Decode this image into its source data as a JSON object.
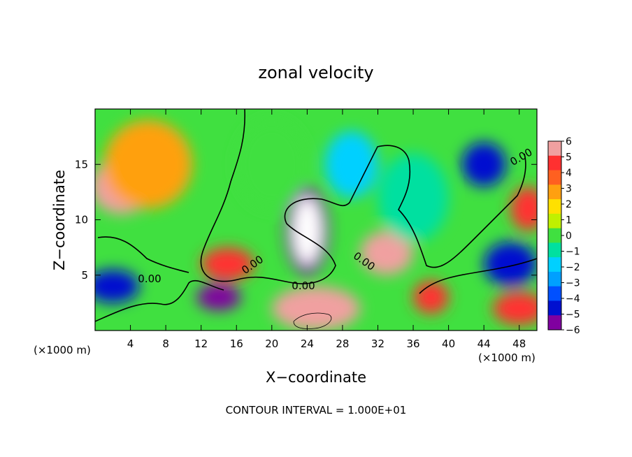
{
  "chart_data": {
    "type": "heatmap",
    "title": "zonal velocity",
    "xlabel": "X−coordinate",
    "ylabel": "Z−coordinate",
    "x_unit_label": "(×1000 m)",
    "y_unit_label": "(×1000 m)",
    "footer": "CONTOUR INTERVAL = 1.000E+01",
    "xlim": [
      0,
      50
    ],
    "ylim": [
      0,
      20
    ],
    "x_ticks": [
      4,
      8,
      12,
      16,
      20,
      24,
      28,
      32,
      36,
      40,
      44,
      48
    ],
    "y_ticks": [
      5,
      10,
      15
    ],
    "contour_labels": [
      "0.00",
      "0.00",
      "0.00",
      "0.00",
      "0.00"
    ],
    "colorbar": {
      "ticks": [
        "6",
        "5",
        "4",
        "3",
        "2",
        "1",
        "0",
        "−1",
        "−2",
        "−3",
        "−4",
        "−5",
        "−6"
      ],
      "colors": [
        "#f0a0a0",
        "#ff3030",
        "#ff6020",
        "#ffa010",
        "#ffe000",
        "#c0f000",
        "#40e040",
        "#00e0a0",
        "#00d0ff",
        "#00a0ff",
        "#0050ff",
        "#0010d0",
        "#8000a0"
      ]
    },
    "blobs": [
      {
        "x": 3,
        "z": 13,
        "rx": 3.5,
        "rz": 2.5,
        "value": 6
      },
      {
        "x": 6,
        "z": 15,
        "rx": 5,
        "rz": 4,
        "value": 3.5
      },
      {
        "x": 24,
        "z": 9,
        "rx": 2.5,
        "rz": 4,
        "value": -6
      },
      {
        "x": 24,
        "z": 9,
        "rx": 1.6,
        "rz": 3,
        "value": -6.5
      },
      {
        "x": 33,
        "z": 7,
        "rx": 3,
        "rz": 2,
        "value": 6
      },
      {
        "x": 25,
        "z": 2,
        "rx": 5,
        "rz": 2,
        "value": 6
      },
      {
        "x": 15,
        "z": 6,
        "rx": 3,
        "rz": 1.5,
        "value": 5
      },
      {
        "x": 14,
        "z": 3,
        "rx": 2.5,
        "rz": 1.2,
        "value": -6
      },
      {
        "x": 44,
        "z": 15,
        "rx": 2.5,
        "rz": 2,
        "value": -5
      },
      {
        "x": 47,
        "z": 6,
        "rx": 3,
        "rz": 2,
        "value": -5
      },
      {
        "x": 48,
        "z": 2,
        "rx": 3,
        "rz": 1.5,
        "value": 5
      },
      {
        "x": 38,
        "z": 3,
        "rx": 2,
        "rz": 1.5,
        "value": 5
      },
      {
        "x": 49,
        "z": 11,
        "rx": 2,
        "rz": 2,
        "value": 5
      },
      {
        "x": 2,
        "z": 4,
        "rx": 3,
        "rz": 1.5,
        "value": -5
      },
      {
        "x": 20,
        "z": 15,
        "rx": 4,
        "rz": 4,
        "value": 0.5
      },
      {
        "x": 36,
        "z": 12,
        "rx": 4,
        "rz": 4,
        "value": -0.5
      },
      {
        "x": 29,
        "z": 15,
        "rx": 3,
        "rz": 3,
        "value": -2
      }
    ]
  }
}
